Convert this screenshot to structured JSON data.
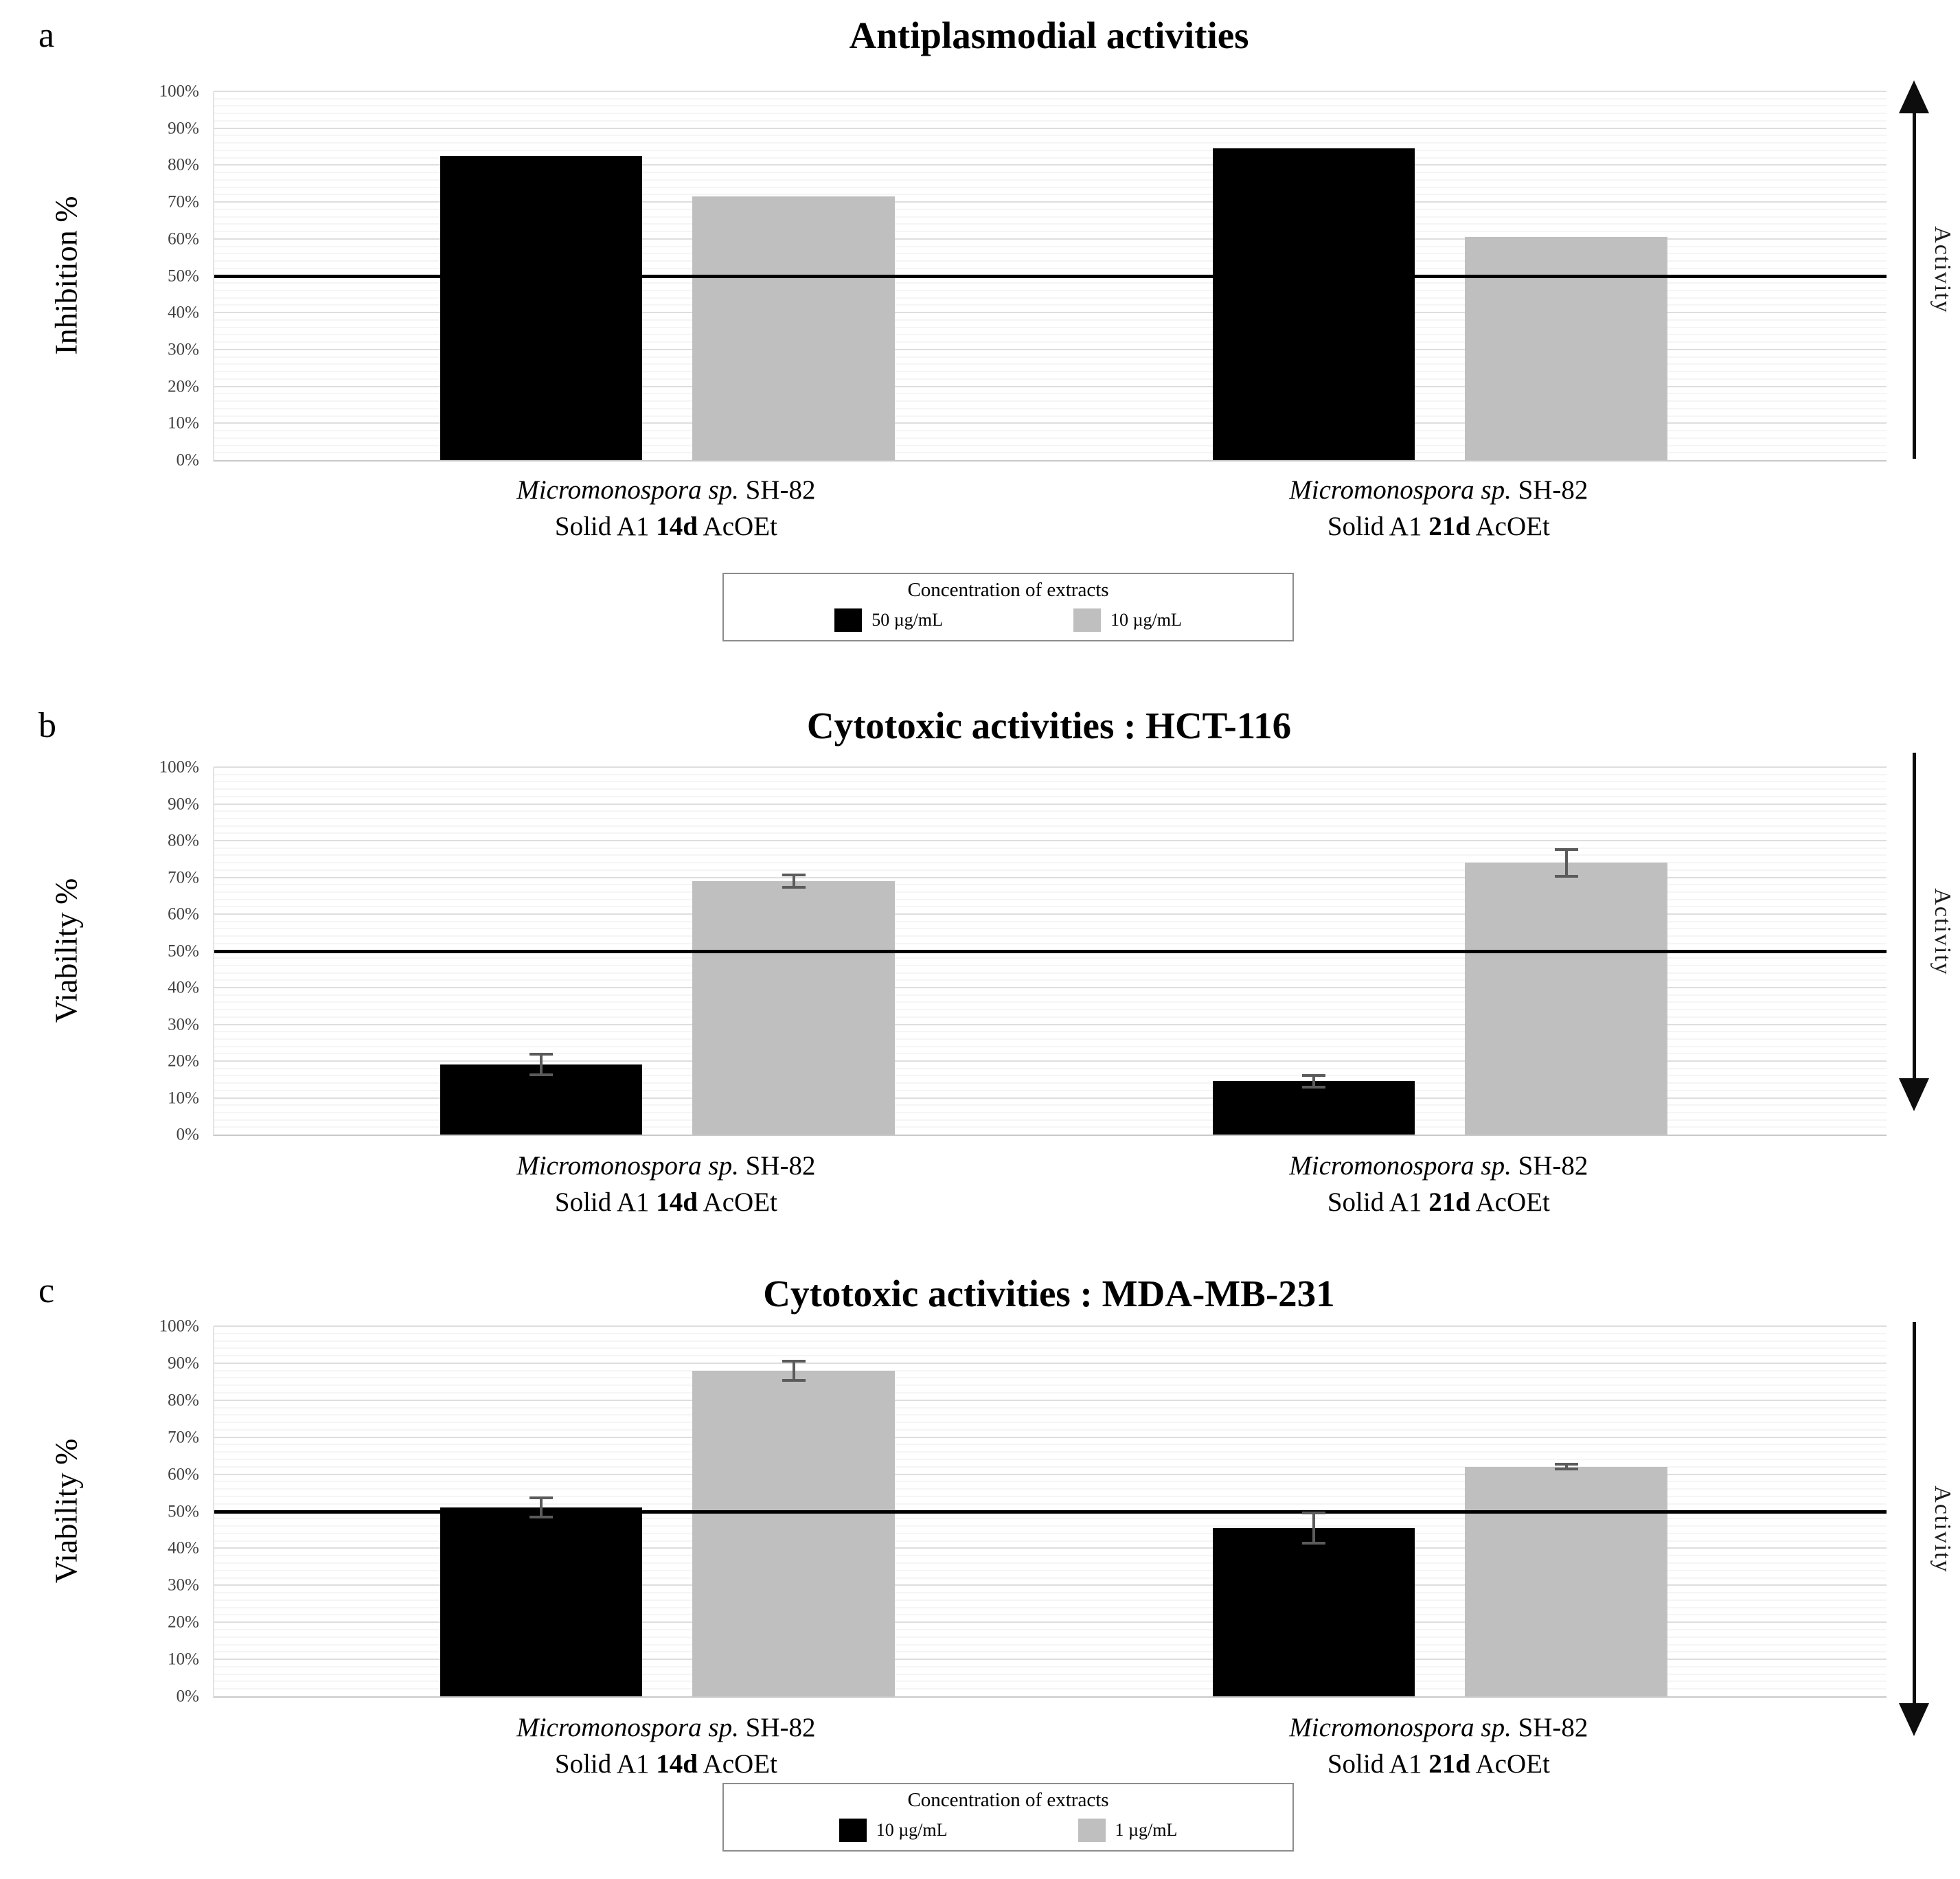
{
  "figure_caption_letters": [
    "a",
    "b",
    "c"
  ],
  "chart_data": [
    {
      "id": "a",
      "type": "bar",
      "panel_letter": "a",
      "title": "Antiplasmodial activities",
      "ylabel": "Inhibition %",
      "ylim": [
        0,
        100
      ],
      "y_ticks": [
        "0%",
        "10%",
        "20%",
        "30%",
        "40%",
        "50%",
        "60%",
        "70%",
        "80%",
        "90%",
        "100%"
      ],
      "grid": true,
      "reference_line_pct": 50,
      "activity_arrow": {
        "direction": "up",
        "label": "Activity"
      },
      "categories": [
        {
          "name_italic": "Micromonospora sp.",
          "name_rest": " SH-82",
          "detail_pre": "Solid A1 ",
          "detail_bold": "14d",
          "detail_post": " AcOEt"
        },
        {
          "name_italic": "Micromonospora sp.",
          "name_rest": " SH-82",
          "detail_pre": "Solid A1 ",
          "detail_bold": "21d",
          "detail_post": " AcOEt"
        }
      ],
      "series": [
        {
          "name": "50 µg/mL",
          "color": "#000000",
          "values": [
            82.5,
            84.5
          ],
          "errors": [
            0,
            0
          ]
        },
        {
          "name": "10 µg/mL",
          "color": "#bfbfbf",
          "values": [
            71.5,
            60.5
          ],
          "errors": [
            0,
            0
          ]
        }
      ],
      "legend": {
        "show": true,
        "position": "below",
        "title": "Concentration of extracts"
      }
    },
    {
      "id": "b",
      "type": "bar",
      "panel_letter": "b",
      "title": "Cytotoxic activities : HCT-116",
      "ylabel": "Viability %",
      "ylim": [
        0,
        100
      ],
      "y_ticks": [
        "0%",
        "10%",
        "20%",
        "30%",
        "40%",
        "50%",
        "60%",
        "70%",
        "80%",
        "90%",
        "100%"
      ],
      "grid": true,
      "reference_line_pct": 50,
      "activity_arrow": {
        "direction": "down",
        "label": "Activity"
      },
      "categories": [
        {
          "name_italic": "Micromonospora sp.",
          "name_rest": " SH-82",
          "detail_pre": "Solid A1 ",
          "detail_bold": "14d",
          "detail_post": " AcOEt"
        },
        {
          "name_italic": "Micromonospora sp.",
          "name_rest": " SH-82",
          "detail_pre": "Solid A1 ",
          "detail_bold": "21d",
          "detail_post": " AcOEt"
        }
      ],
      "series": [
        {
          "name": "10 µg/mL",
          "color": "#000000",
          "values": [
            19,
            14.5
          ],
          "errors": [
            3.2,
            2
          ]
        },
        {
          "name": "1 µg/mL",
          "color": "#bfbfbf",
          "values": [
            69,
            74
          ],
          "errors": [
            2,
            4
          ]
        }
      ],
      "legend": {
        "show": false,
        "position": "below",
        "title": "Concentration of extracts"
      }
    },
    {
      "id": "c",
      "type": "bar",
      "panel_letter": "c",
      "title": "Cytotoxic activities : MDA-MB-231",
      "ylabel": "Viability %",
      "ylim": [
        0,
        100
      ],
      "y_ticks": [
        "0%",
        "10%",
        "20%",
        "30%",
        "40%",
        "50%",
        "60%",
        "70%",
        "80%",
        "90%",
        "100%"
      ],
      "grid": true,
      "reference_line_pct": 50,
      "activity_arrow": {
        "direction": "down",
        "label": "Activity"
      },
      "categories": [
        {
          "name_italic": "Micromonospora sp.",
          "name_rest": " SH-82",
          "detail_pre": "Solid A1 ",
          "detail_bold": "14d",
          "detail_post": " AcOEt"
        },
        {
          "name_italic": "Micromonospora sp.",
          "name_rest": " SH-82",
          "detail_pre": "Solid A1 ",
          "detail_bold": "21d",
          "detail_post": " AcOEt"
        }
      ],
      "series": [
        {
          "name": "10 µg/mL",
          "color": "#000000",
          "values": [
            51,
            45.5
          ],
          "errors": [
            3,
            4.5
          ]
        },
        {
          "name": "1 µg/mL",
          "color": "#bfbfbf",
          "values": [
            88,
            62
          ],
          "errors": [
            3,
            1
          ]
        }
      ],
      "legend": {
        "show": true,
        "position": "below",
        "title": "Concentration of extracts"
      }
    }
  ]
}
